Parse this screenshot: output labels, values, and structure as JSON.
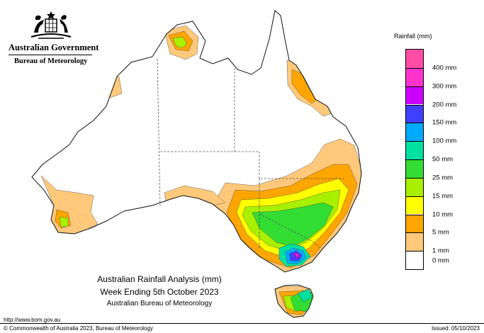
{
  "header": {
    "government": "Australian Government",
    "agency": "Bureau of Meteorology"
  },
  "legend": {
    "title": "Rainfall (mm)",
    "items": [
      {
        "label": "",
        "color": "#ff4da6"
      },
      {
        "label": "400 mm",
        "color": "#ff33cc"
      },
      {
        "label": "300 mm",
        "color": "#cc00ff"
      },
      {
        "label": "200 mm",
        "color": "#4040ff"
      },
      {
        "label": "150 mm",
        "color": "#00aaff"
      },
      {
        "label": "100 mm",
        "color": "#00e0a0"
      },
      {
        "label": "50 mm",
        "color": "#33dd33"
      },
      {
        "label": "25 mm",
        "color": "#a8f000"
      },
      {
        "label": "15 mm",
        "color": "#ffff00"
      },
      {
        "label": "10 mm",
        "color": "#ffa500"
      },
      {
        "label": "5 mm",
        "color": "#ffc87a"
      },
      {
        "label": "1 mm",
        "color": "#ffffff"
      }
    ],
    "bottom_label": "0 mm"
  },
  "caption": {
    "line1": "Australian Rainfall Analysis (mm)",
    "line2": "Week Ending 5th October 2023",
    "line3": "Australian Bureau of Meteorology"
  },
  "footer": {
    "url": "http://www.bom.gov.au",
    "copyright": "© Commonwealth of Australia 2023, Bureau of Meteorology",
    "issued": "Issued: 05/10/2023"
  },
  "map_colors": {
    "outline": "#111111",
    "border": "#555555",
    "r1": "#ffc87a",
    "r5": "#ffa500",
    "r10": "#ffff00",
    "r15": "#a8f000",
    "r25": "#33dd33",
    "r50": "#00e0a0",
    "r150": "#00aaff",
    "r200": "#4040ff",
    "r300": "#cc00ff",
    "r400": "#ff33cc"
  }
}
